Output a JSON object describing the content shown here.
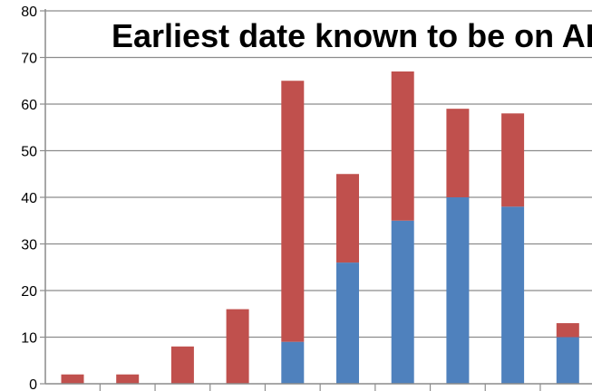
{
  "chart_data": {
    "type": "bar",
    "stacked": true,
    "title": "Earliest date known to be on ART",
    "xlabel": "",
    "ylabel": "",
    "ylim": [
      0,
      80
    ],
    "yticks": [
      0,
      10,
      20,
      30,
      40,
      50,
      60,
      70,
      80
    ],
    "grid": true,
    "legend": "none",
    "categories": [
      "",
      "",
      "",
      "",
      "",
      "",
      "",
      "",
      "",
      ""
    ],
    "series": [
      {
        "color": "#4f81bd",
        "values": [
          0,
          0,
          0,
          0,
          9,
          26,
          35,
          40,
          38,
          10
        ]
      },
      {
        "color": "#c0504d",
        "values": [
          2,
          2,
          8,
          16,
          56,
          19,
          32,
          19,
          20,
          3
        ]
      }
    ]
  }
}
